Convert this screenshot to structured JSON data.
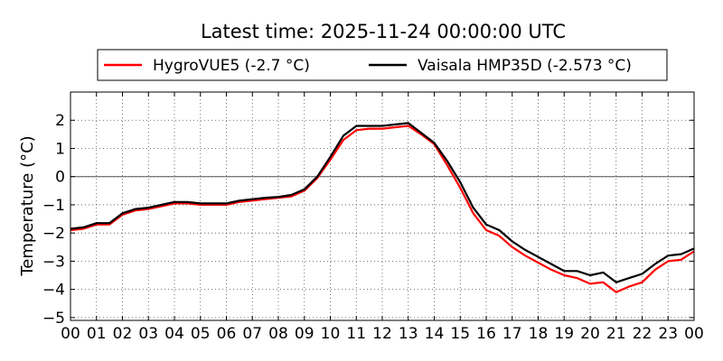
{
  "chart_data": {
    "type": "line",
    "title": "Latest time: 2025-11-24 00:00:00 UTC",
    "xlabel": "",
    "ylabel": "Temperature (°C)",
    "xlim": [
      0,
      24
    ],
    "ylim": [
      -5.1,
      3.0
    ],
    "x_ticks": [
      "00",
      "01",
      "02",
      "03",
      "04",
      "05",
      "06",
      "07",
      "08",
      "09",
      "10",
      "11",
      "12",
      "13",
      "14",
      "15",
      "16",
      "17",
      "18",
      "19",
      "20",
      "21",
      "22",
      "23",
      "00"
    ],
    "y_ticks": [
      2,
      1,
      0,
      -1,
      -2,
      -3,
      -4,
      -5
    ],
    "y_tick_labels": [
      "2",
      "1",
      "0",
      "−1",
      "−2",
      "−3",
      "−4",
      "−5"
    ],
    "grid": true,
    "zero_line": true,
    "legend_position": "top-center",
    "series": [
      {
        "name": "HygroVUE5 (-2.7 °C)",
        "color": "#ff0000",
        "x": [
          0,
          0.5,
          1,
          1.5,
          2,
          2.5,
          3,
          3.5,
          4,
          4.5,
          5,
          5.5,
          6,
          6.5,
          7,
          7.5,
          8,
          8.5,
          9,
          9.5,
          10,
          10.5,
          11,
          11.5,
          12,
          12.5,
          13,
          13.5,
          14,
          14.5,
          15,
          15.5,
          16,
          16.5,
          17,
          17.5,
          18,
          18.5,
          19,
          19.5,
          20,
          20.5,
          21,
          21.5,
          22,
          22.5,
          23,
          23.5,
          24
        ],
        "values": [
          -1.9,
          -1.85,
          -1.7,
          -1.7,
          -1.35,
          -1.2,
          -1.15,
          -1.05,
          -0.95,
          -0.95,
          -1.0,
          -1.0,
          -1.0,
          -0.9,
          -0.85,
          -0.8,
          -0.75,
          -0.7,
          -0.5,
          -0.05,
          0.6,
          1.3,
          1.65,
          1.7,
          1.7,
          1.75,
          1.8,
          1.5,
          1.15,
          0.4,
          -0.4,
          -1.3,
          -1.9,
          -2.1,
          -2.5,
          -2.8,
          -3.05,
          -3.3,
          -3.5,
          -3.6,
          -3.8,
          -3.75,
          -4.1,
          -3.9,
          -3.75,
          -3.3,
          -3.0,
          -2.95,
          -2.65
        ]
      },
      {
        "name": "Vaisala HMP35D (-2.573 °C)",
        "color": "#000000",
        "x": [
          0,
          0.5,
          1,
          1.5,
          2,
          2.5,
          3,
          3.5,
          4,
          4.5,
          5,
          5.5,
          6,
          6.5,
          7,
          7.5,
          8,
          8.5,
          9,
          9.5,
          10,
          10.5,
          11,
          11.5,
          12,
          12.5,
          13,
          13.5,
          14,
          14.5,
          15,
          15.5,
          16,
          16.5,
          17,
          17.5,
          18,
          18.5,
          19,
          19.5,
          20,
          20.5,
          21,
          21.5,
          22,
          22.5,
          23,
          23.5,
          24
        ],
        "values": [
          -1.85,
          -1.8,
          -1.65,
          -1.65,
          -1.3,
          -1.15,
          -1.1,
          -1.0,
          -0.9,
          -0.9,
          -0.95,
          -0.95,
          -0.95,
          -0.85,
          -0.8,
          -0.75,
          -0.72,
          -0.65,
          -0.45,
          0.0,
          0.7,
          1.45,
          1.8,
          1.8,
          1.8,
          1.85,
          1.9,
          1.55,
          1.2,
          0.55,
          -0.2,
          -1.1,
          -1.7,
          -1.9,
          -2.3,
          -2.6,
          -2.85,
          -3.1,
          -3.35,
          -3.35,
          -3.5,
          -3.4,
          -3.75,
          -3.6,
          -3.45,
          -3.1,
          -2.8,
          -2.75,
          -2.55
        ]
      }
    ]
  }
}
